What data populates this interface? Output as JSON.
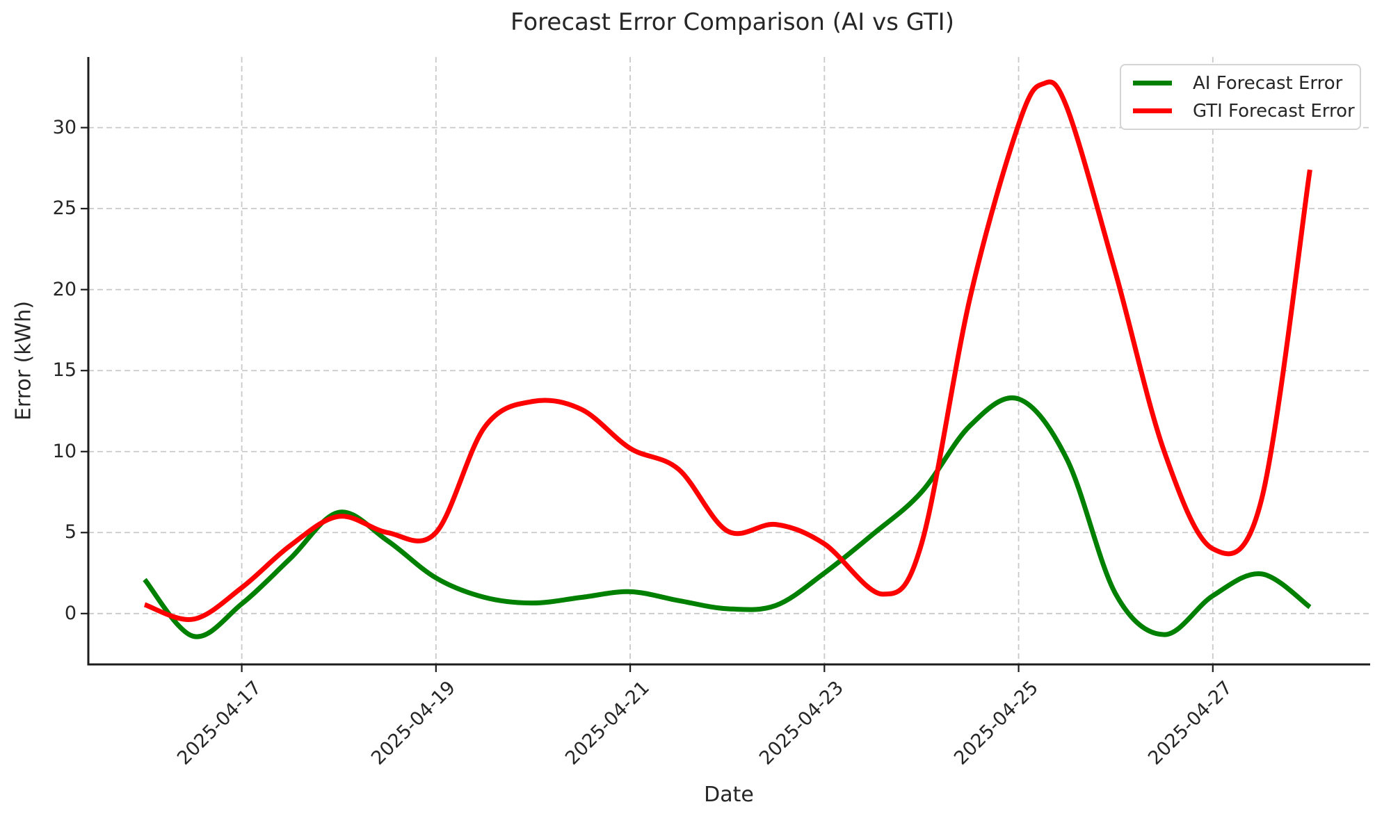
{
  "title": "Forecast Error Comparison (AI vs GTI)",
  "axes": {
    "xlabel": "Date",
    "ylabel": "Error (kWh)",
    "x_tick_labels": [
      "2025-04-17",
      "2025-04-19",
      "2025-04-21",
      "2025-04-23",
      "2025-04-25",
      "2025-04-27"
    ],
    "x_tick_days": [
      17,
      19,
      21,
      23,
      25,
      27
    ],
    "y_tick_labels": [
      "0",
      "5",
      "10",
      "15",
      "20",
      "25",
      "30"
    ],
    "y_tick_values": [
      0,
      5,
      10,
      15,
      20,
      25,
      30
    ],
    "x_range_days": [
      15.42,
      28.62
    ],
    "y_range": [
      -3.14,
      34.36
    ],
    "grid": "dashed",
    "grid_color": "#c9c9c9",
    "spine_color": "#1c1c1c",
    "text_color": "#262626"
  },
  "legend": {
    "position": "upper right",
    "items": [
      {
        "label": "AI Forecast Error",
        "color": "#008000"
      },
      {
        "label": "GTI Forecast Error",
        "color": "#ff0000"
      }
    ]
  },
  "chart_data": {
    "type": "line",
    "title": "Forecast Error Comparison (AI vs GTI)",
    "xlabel": "Date",
    "ylabel": "Error (kWh)",
    "ylim": [
      -3.14,
      34.36
    ],
    "grid": "dashed",
    "legend_position": "upper right",
    "dates": [
      "2025-04-16",
      "2025-04-17",
      "2025-04-18",
      "2025-04-19",
      "2025-04-20",
      "2025-04-21",
      "2025-04-22",
      "2025-04-23",
      "2025-04-24",
      "2025-04-25",
      "2025-04-26",
      "2025-04-27",
      "2025-04-28"
    ],
    "series": [
      {
        "name": "AI Forecast Error",
        "color": "#008000",
        "daily_values": [
          2.1,
          0.6,
          6.25,
          2.2,
          0.65,
          1.35,
          0.3,
          2.5,
          7.5,
          13.25,
          1.2,
          1.1,
          0.4
        ],
        "smooth_points": [
          [
            16,
            2.1
          ],
          [
            16.5,
            -1.4
          ],
          [
            17,
            0.6
          ],
          [
            17.5,
            3.4
          ],
          [
            18,
            6.25
          ],
          [
            18.5,
            4.5
          ],
          [
            19,
            2.2
          ],
          [
            19.5,
            1.0
          ],
          [
            20,
            0.65
          ],
          [
            20.5,
            1.0
          ],
          [
            21,
            1.35
          ],
          [
            21.5,
            0.8
          ],
          [
            22,
            0.3
          ],
          [
            22.5,
            0.5
          ],
          [
            23,
            2.5
          ],
          [
            23.5,
            4.9
          ],
          [
            24,
            7.5
          ],
          [
            24.5,
            11.6
          ],
          [
            25,
            13.25
          ],
          [
            25.5,
            9.5
          ],
          [
            26,
            1.2
          ],
          [
            26.5,
            -1.3
          ],
          [
            27,
            1.1
          ],
          [
            27.5,
            2.45
          ],
          [
            28,
            0.4
          ]
        ]
      },
      {
        "name": "GTI Forecast Error",
        "color": "#ff0000",
        "daily_values": [
          0.55,
          1.6,
          6.0,
          5.0,
          13.1,
          10.2,
          5.1,
          4.3,
          4.3,
          30.2,
          21.0,
          4.0,
          27.4
        ],
        "smooth_points": [
          [
            16,
            0.55
          ],
          [
            16.5,
            -0.35
          ],
          [
            17,
            1.6
          ],
          [
            17.5,
            4.2
          ],
          [
            18,
            6.0
          ],
          [
            18.5,
            5.0
          ],
          [
            19,
            5.0
          ],
          [
            19.5,
            11.5
          ],
          [
            20,
            13.1
          ],
          [
            20.5,
            12.6
          ],
          [
            21,
            10.2
          ],
          [
            21.5,
            8.9
          ],
          [
            22,
            5.1
          ],
          [
            22.5,
            5.5
          ],
          [
            23,
            4.3
          ],
          [
            23.6,
            1.2
          ],
          [
            24,
            4.3
          ],
          [
            24.5,
            19.5
          ],
          [
            25,
            30.2
          ],
          [
            25.25,
            32.7
          ],
          [
            25.5,
            31.2
          ],
          [
            26,
            21.0
          ],
          [
            26.5,
            10.0
          ],
          [
            27,
            4.0
          ],
          [
            27.5,
            7.0
          ],
          [
            28,
            27.4
          ]
        ]
      }
    ]
  }
}
